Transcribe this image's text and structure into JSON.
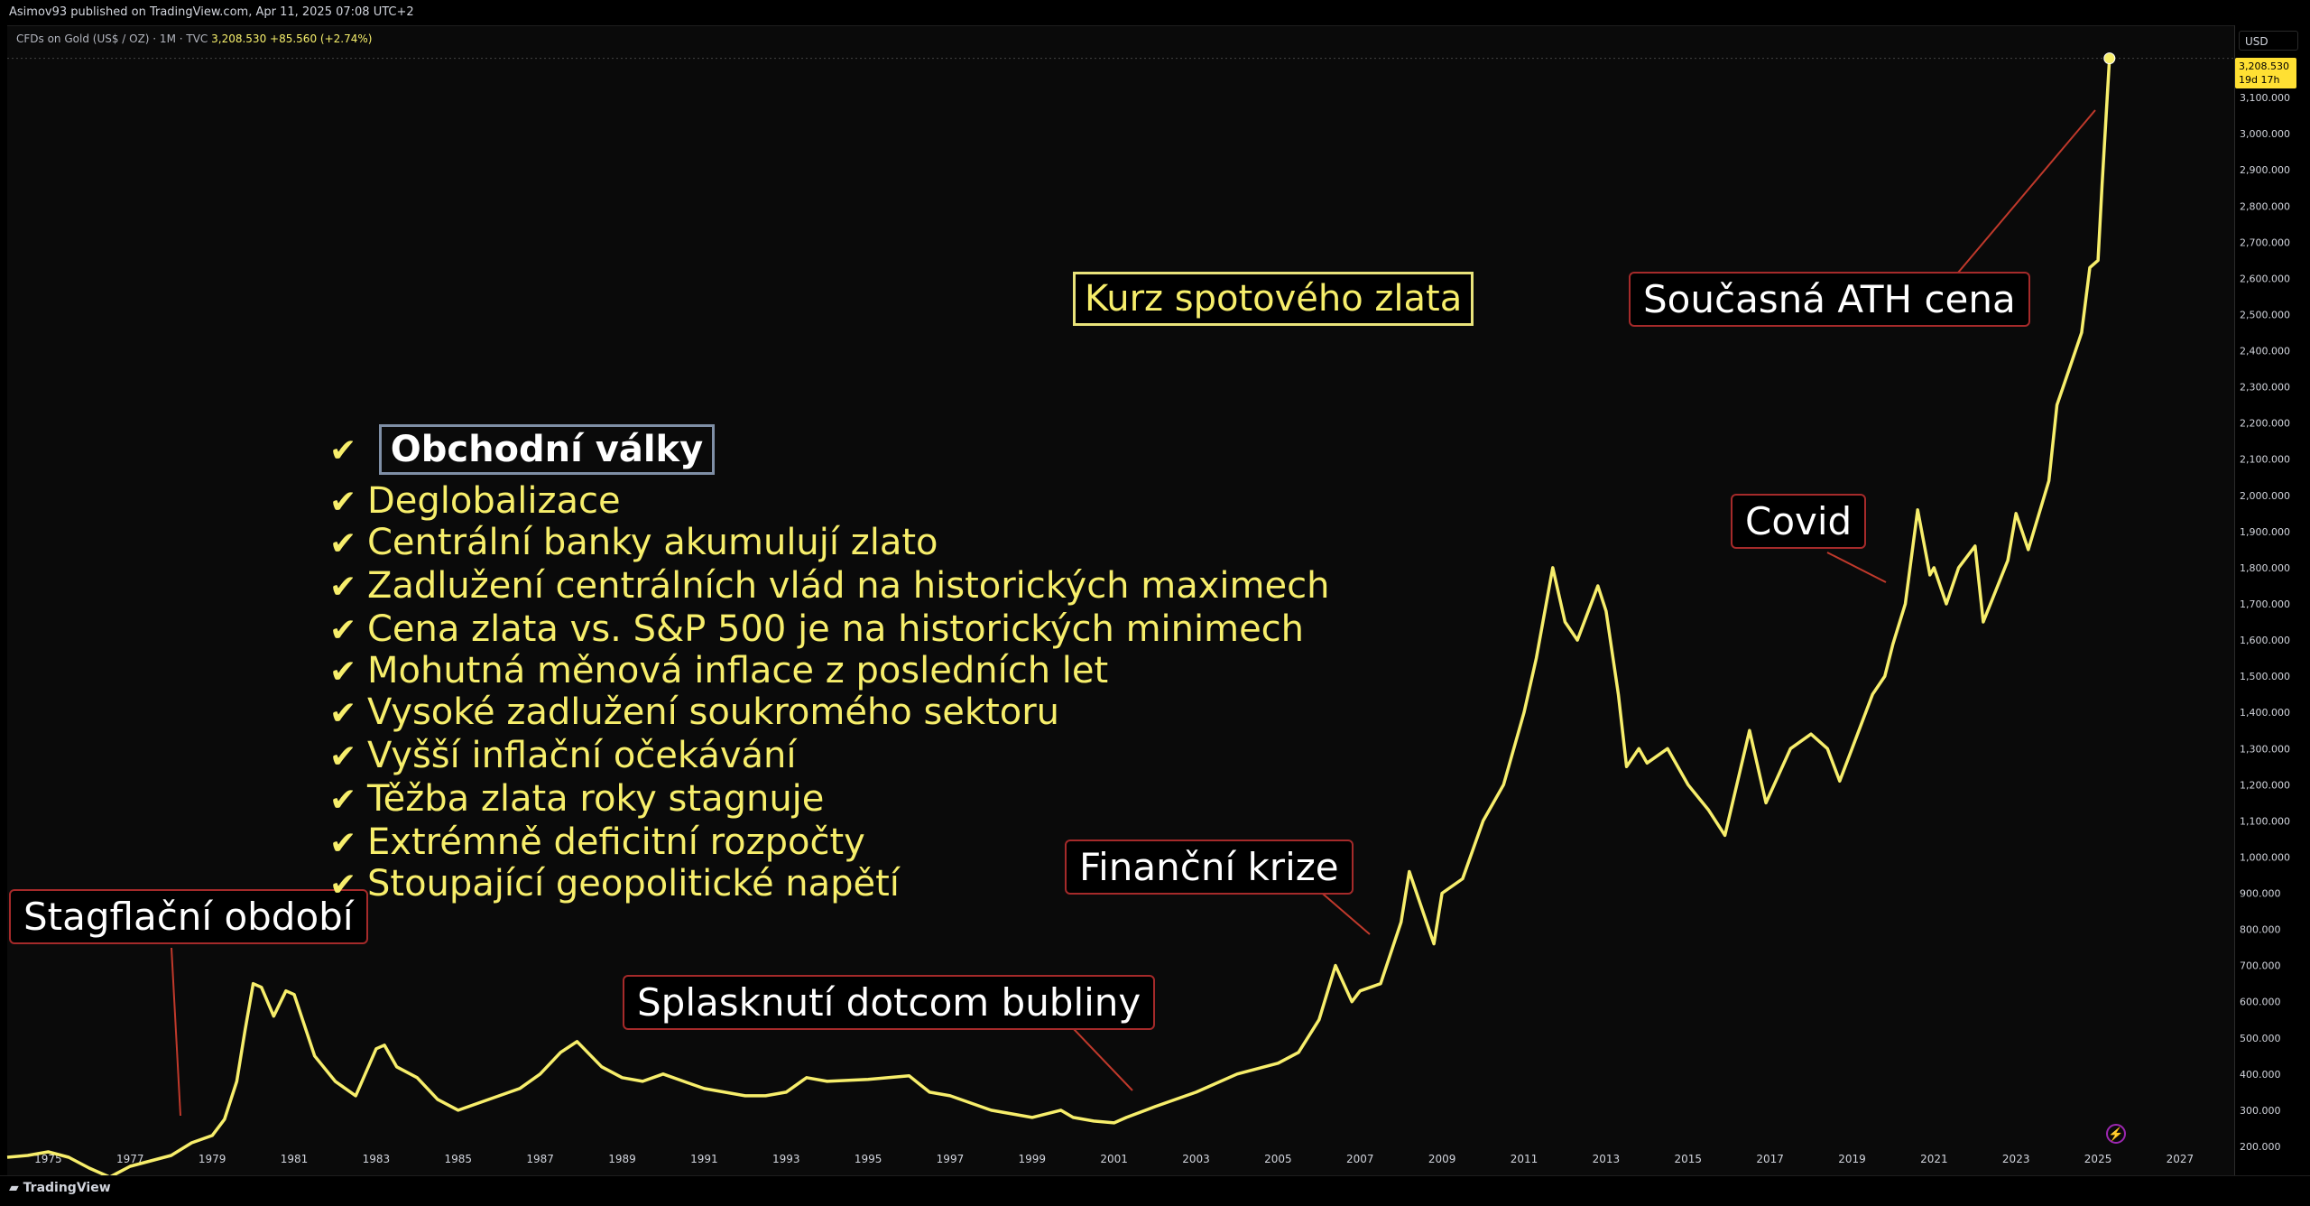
{
  "header": {
    "published": "Asimov93 published on TradingView.com, Apr 11, 2025 07:08 UTC+2",
    "symbol": "CFDs on Gold (US$ / OZ) · 1M · TVC",
    "last_price": "3,208.530",
    "change": "+85.560 (+2.74%)",
    "currency": "USD"
  },
  "price_tag": {
    "price": "3,208.530",
    "countdown": "19d 17h"
  },
  "footer": {
    "brand": "TradingView"
  },
  "annotations": {
    "title": "Kurz spotového zlata",
    "stagflation": "Stagflační období",
    "dotcom": "Splasknutí dotcom bubliny",
    "financial_crisis": "Finanční krize",
    "covid": "Covid",
    "ath": "Současná ATH cena"
  },
  "reasons": [
    "Obchodní války",
    "Deglobalizace",
    "Centrální banky akumulují zlato",
    "Zadlužení centrálních vlád na historických maximech",
    "Cena zlata vs. S&P 500 je na historických minimech",
    "Mohutná měnová inflace z posledních let",
    "Vysoké zadlužení soukromého sektoru",
    "Vyšší inflační očekávání",
    "Těžba zlata roky stagnuje",
    "Extrémně deficitní rozpočty",
    "Stoupající geopolitické napětí"
  ],
  "chart_data": {
    "type": "line",
    "title": "Kurz spotového zlata",
    "line_color": "#f7ee6b",
    "grid": false,
    "ylim": [
      150,
      3250
    ],
    "xlim": [
      1974.0,
      2028.3
    ],
    "y_ticks": [
      200,
      300,
      400,
      500,
      600,
      700,
      800,
      900,
      1000,
      1100,
      1200,
      1300,
      1400,
      1500,
      1600,
      1700,
      1800,
      1900,
      2000,
      2100,
      2200,
      2300,
      2400,
      2500,
      2600,
      2700,
      2800,
      2900,
      3000,
      3100
    ],
    "y_tick_labels": [
      "200.000",
      "300.000",
      "400.000",
      "500.000",
      "600.000",
      "700.000",
      "800.000",
      "900.000",
      "1,000.000",
      "1,100.000",
      "1,200.000",
      "1,300.000",
      "1,400.000",
      "1,500.000",
      "1,600.000",
      "1,700.000",
      "1,800.000",
      "1,900.000",
      "2,000.000",
      "2,100.000",
      "2,200.000",
      "2,300.000",
      "2,400.000",
      "2,500.000",
      "2,600.000",
      "2,700.000",
      "2,800.000",
      "2,900.000",
      "3,000.000",
      "3,100.000"
    ],
    "x_ticks": [
      1975,
      1977,
      1979,
      1981,
      1983,
      1985,
      1987,
      1989,
      1991,
      1993,
      1995,
      1997,
      1999,
      2001,
      2003,
      2005,
      2007,
      2009,
      2011,
      2013,
      2015,
      2017,
      2019,
      2021,
      2023,
      2025,
      2027
    ],
    "series": [
      {
        "x": [
          1974.0,
          1974.5,
          1975.0,
          1975.5,
          1976.0,
          1976.5,
          1977.0,
          1977.5,
          1978.0,
          1978.5,
          1979.0,
          1979.3,
          1979.6,
          1979.8,
          1980.0,
          1980.2,
          1980.5,
          1980.8,
          1981.0,
          1981.5,
          1982.0,
          1982.5,
          1983.0,
          1983.2,
          1983.5,
          1984.0,
          1984.5,
          1985.0,
          1985.5,
          1986.0,
          1986.5,
          1987.0,
          1987.5,
          1987.9,
          1988.5,
          1989.0,
          1989.5,
          1990.0,
          1990.5,
          1991.0,
          1991.5,
          1992.0,
          1992.5,
          1993.0,
          1993.5,
          1994.0,
          1995.0,
          1996.0,
          1996.5,
          1997.0,
          1997.5,
          1998.0,
          1998.5,
          1999.0,
          1999.7,
          2000.0,
          2000.5,
          2001.0,
          2001.3,
          2002.0,
          2003.0,
          2004.0,
          2005.0,
          2005.5,
          2006.0,
          2006.4,
          2006.8,
          2007.0,
          2007.5,
          2008.0,
          2008.2,
          2008.8,
          2009.0,
          2009.5,
          2010.0,
          2010.5,
          2011.0,
          2011.3,
          2011.7,
          2012.0,
          2012.3,
          2012.8,
          2013.0,
          2013.3,
          2013.5,
          2013.8,
          2014.0,
          2014.5,
          2015.0,
          2015.5,
          2015.9,
          2016.5,
          2016.9,
          2017.5,
          2018.0,
          2018.4,
          2018.7,
          2019.0,
          2019.5,
          2019.8,
          2020.0,
          2020.3,
          2020.6,
          2020.9,
          2021.0,
          2021.3,
          2021.6,
          2022.0,
          2022.2,
          2022.8,
          2023.0,
          2023.3,
          2023.8,
          2024.0,
          2024.3,
          2024.6,
          2024.8,
          2025.0,
          2025.1,
          2025.28
        ],
        "y": [
          170,
          175,
          185,
          170,
          140,
          115,
          145,
          160,
          175,
          210,
          230,
          275,
          380,
          520,
          650,
          640,
          560,
          630,
          620,
          450,
          380,
          340,
          470,
          480,
          420,
          390,
          330,
          300,
          320,
          340,
          360,
          400,
          460,
          490,
          420,
          390,
          380,
          400,
          380,
          360,
          350,
          340,
          340,
          350,
          390,
          380,
          385,
          395,
          350,
          340,
          320,
          300,
          290,
          280,
          300,
          280,
          270,
          265,
          280,
          310,
          350,
          400,
          430,
          460,
          550,
          700,
          600,
          630,
          650,
          820,
          960,
          760,
          900,
          940,
          1100,
          1200,
          1400,
          1550,
          1800,
          1650,
          1600,
          1750,
          1680,
          1450,
          1250,
          1300,
          1260,
          1300,
          1200,
          1130,
          1060,
          1350,
          1150,
          1300,
          1340,
          1300,
          1210,
          1300,
          1450,
          1500,
          1590,
          1700,
          1960,
          1780,
          1800,
          1700,
          1800,
          1860,
          1650,
          1820,
          1950,
          1850,
          2040,
          2250,
          2350,
          2450,
          2630,
          2650,
          2860,
          3208.53
        ]
      }
    ]
  }
}
